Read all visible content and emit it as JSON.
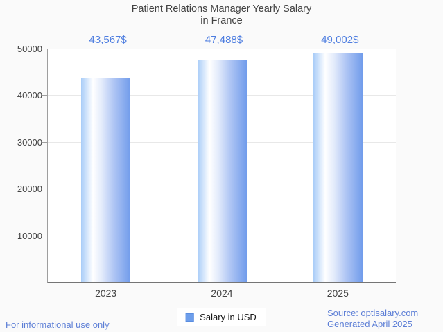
{
  "title": {
    "line1": "Patient Relations Manager Yearly Salary",
    "line2": "in France"
  },
  "chart_data": {
    "type": "bar",
    "title": "Patient Relations Manager Yearly Salary in France",
    "categories": [
      "2023",
      "2024",
      "2025"
    ],
    "values": [
      43567,
      47488,
      49002
    ],
    "value_labels": [
      "43,567$",
      "47,488$",
      "49,002$"
    ],
    "xlabel": "",
    "ylabel": "",
    "ylim": [
      0,
      50000
    ],
    "yticks": [
      10000,
      20000,
      30000,
      40000,
      50000
    ],
    "grid": true,
    "legend_position": "bottom",
    "series_name": "Salary in USD",
    "bar_color_left": "#a8ccf8",
    "bar_color_mid": "#ffffff",
    "bar_color_right": "#719ceb"
  },
  "legend": {
    "label": "Salary in USD",
    "swatch_color": "#6d9eeb"
  },
  "footer": {
    "disclaimer": "For informational use only",
    "source": "Source: optisalary.com",
    "generated": "Generated April 2025"
  },
  "colors": {
    "value_label": "#4d7de0",
    "axis_text": "#424242",
    "footer_text": "#5c7ed6",
    "gridline": "#e8e8e8",
    "axis_line": "#757575",
    "background": "#fafafa"
  }
}
